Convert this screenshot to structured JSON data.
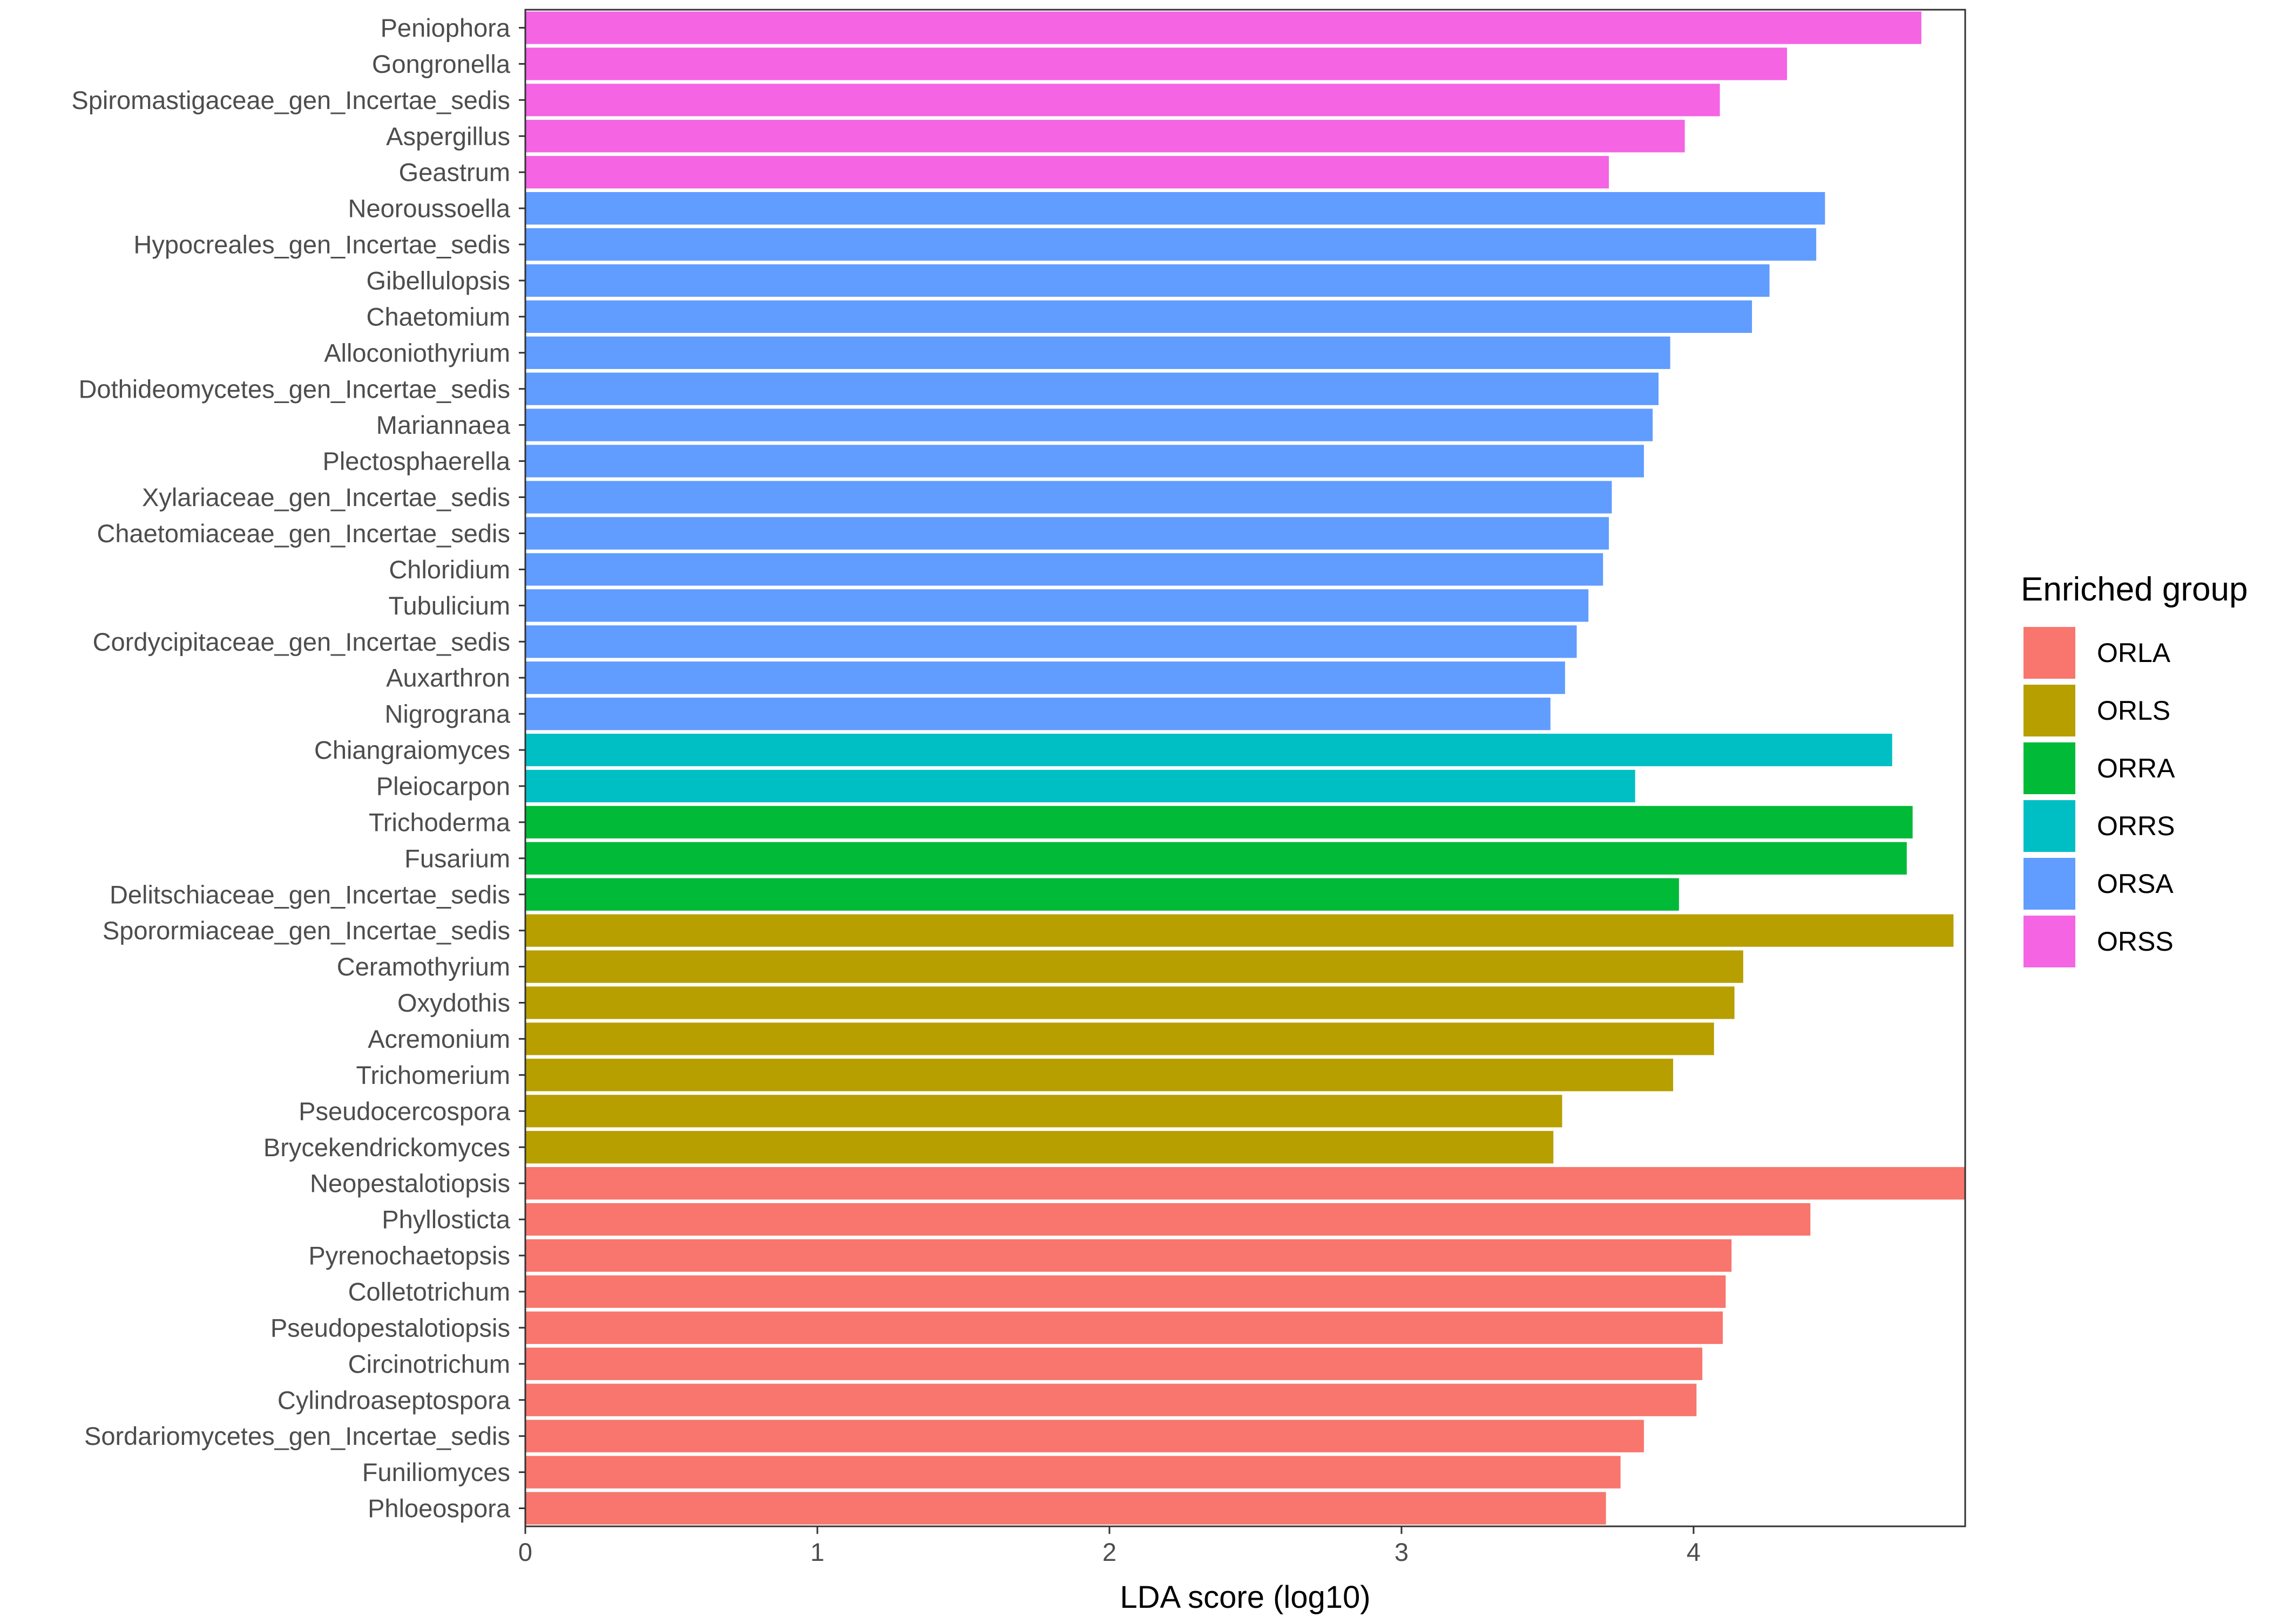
{
  "chart_data": {
    "type": "bar",
    "orientation": "horizontal",
    "title": "",
    "xlabel": "LDA score (log10)",
    "ylabel": "",
    "xlim": [
      0,
      4.93
    ],
    "xticks": [
      0,
      1,
      2,
      3,
      4
    ],
    "grid": false,
    "legend": {
      "title": "Enriched group",
      "position": "right",
      "entries": [
        {
          "name": "ORLA",
          "color": "#F8766D"
        },
        {
          "name": "ORLS",
          "color": "#B79F00"
        },
        {
          "name": "ORRA",
          "color": "#00BA38"
        },
        {
          "name": "ORRS",
          "color": "#00BFC4"
        },
        {
          "name": "ORSA",
          "color": "#619CFF"
        },
        {
          "name": "ORSS",
          "color": "#F564E3"
        }
      ]
    },
    "bars": [
      {
        "label": "Peniophora",
        "value": 4.78,
        "group": "ORSS"
      },
      {
        "label": "Gongronella",
        "value": 4.32,
        "group": "ORSS"
      },
      {
        "label": "Spiromastigaceae_gen_Incertae_sedis",
        "value": 4.09,
        "group": "ORSS"
      },
      {
        "label": "Aspergillus",
        "value": 3.97,
        "group": "ORSS"
      },
      {
        "label": "Geastrum",
        "value": 3.71,
        "group": "ORSS"
      },
      {
        "label": "Neoroussoella",
        "value": 4.45,
        "group": "ORSA"
      },
      {
        "label": "Hypocreales_gen_Incertae_sedis",
        "value": 4.42,
        "group": "ORSA"
      },
      {
        "label": "Gibellulopsis",
        "value": 4.26,
        "group": "ORSA"
      },
      {
        "label": "Chaetomium",
        "value": 4.2,
        "group": "ORSA"
      },
      {
        "label": "Alloconiothyrium",
        "value": 3.92,
        "group": "ORSA"
      },
      {
        "label": "Dothideomycetes_gen_Incertae_sedis",
        "value": 3.88,
        "group": "ORSA"
      },
      {
        "label": "Mariannaea",
        "value": 3.86,
        "group": "ORSA"
      },
      {
        "label": "Plectosphaerella",
        "value": 3.83,
        "group": "ORSA"
      },
      {
        "label": "Xylariaceae_gen_Incertae_sedis",
        "value": 3.72,
        "group": "ORSA"
      },
      {
        "label": "Chaetomiaceae_gen_Incertae_sedis",
        "value": 3.71,
        "group": "ORSA"
      },
      {
        "label": "Chloridium",
        "value": 3.69,
        "group": "ORSA"
      },
      {
        "label": "Tubulicium",
        "value": 3.64,
        "group": "ORSA"
      },
      {
        "label": "Cordycipitaceae_gen_Incertae_sedis",
        "value": 3.6,
        "group": "ORSA"
      },
      {
        "label": "Auxarthron",
        "value": 3.56,
        "group": "ORSA"
      },
      {
        "label": "Nigrograna",
        "value": 3.51,
        "group": "ORSA"
      },
      {
        "label": "Chiangraiomyces",
        "value": 4.68,
        "group": "ORRS"
      },
      {
        "label": "Pleiocarpon",
        "value": 3.8,
        "group": "ORRS"
      },
      {
        "label": "Trichoderma",
        "value": 4.75,
        "group": "ORRA"
      },
      {
        "label": "Fusarium",
        "value": 4.73,
        "group": "ORRA"
      },
      {
        "label": "Delitschiaceae_gen_Incertae_sedis",
        "value": 3.95,
        "group": "ORRA"
      },
      {
        "label": "Sporormiaceae_gen_Incertae_sedis",
        "value": 4.89,
        "group": "ORLS"
      },
      {
        "label": "Ceramothyrium",
        "value": 4.17,
        "group": "ORLS"
      },
      {
        "label": "Oxydothis",
        "value": 4.14,
        "group": "ORLS"
      },
      {
        "label": "Acremonium",
        "value": 4.07,
        "group": "ORLS"
      },
      {
        "label": "Trichomerium",
        "value": 3.93,
        "group": "ORLS"
      },
      {
        "label": "Pseudocercospora",
        "value": 3.55,
        "group": "ORLS"
      },
      {
        "label": "Brycekendrickomyces",
        "value": 3.52,
        "group": "ORLS"
      },
      {
        "label": "Neopestalotiopsis",
        "value": 4.93,
        "group": "ORLA"
      },
      {
        "label": "Phyllosticta",
        "value": 4.4,
        "group": "ORLA"
      },
      {
        "label": "Pyrenochaetopsis",
        "value": 4.13,
        "group": "ORLA"
      },
      {
        "label": "Colletotrichum",
        "value": 4.11,
        "group": "ORLA"
      },
      {
        "label": "Pseudopestalotiopsis",
        "value": 4.1,
        "group": "ORLA"
      },
      {
        "label": "Circinotrichum",
        "value": 4.03,
        "group": "ORLA"
      },
      {
        "label": "Cylindroaseptospora",
        "value": 4.01,
        "group": "ORLA"
      },
      {
        "label": "Sordariomycetes_gen_Incertae_sedis",
        "value": 3.83,
        "group": "ORLA"
      },
      {
        "label": "Funiliomyces",
        "value": 3.75,
        "group": "ORLA"
      },
      {
        "label": "Phloeospora",
        "value": 3.7,
        "group": "ORLA"
      }
    ]
  }
}
